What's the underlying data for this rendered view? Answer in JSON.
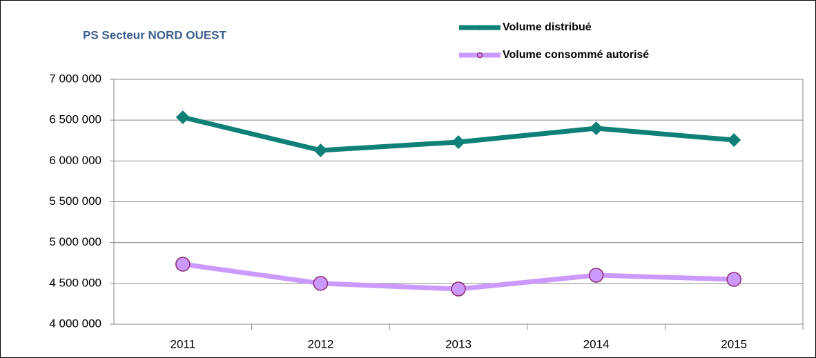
{
  "chart_data": {
    "type": "line",
    "title": "PS Secteur NORD OUEST",
    "categories": [
      "2011",
      "2012",
      "2013",
      "2014",
      "2015"
    ],
    "series": [
      {
        "name": "Volume distribué",
        "color": "#0e8078",
        "marker": "diamond",
        "values": [
          6535000,
          6130000,
          6231000,
          6400000,
          6256000
        ]
      },
      {
        "name": "Volume consommé autorisé",
        "color": "#cc99ff",
        "marker": "circle",
        "values": [
          4735000,
          4500000,
          4431000,
          4600000,
          4549000
        ]
      }
    ],
    "ylim": [
      4000000,
      7000000
    ],
    "yticks": [
      {
        "value": 4000000,
        "label": "4 000 000"
      },
      {
        "value": 4500000,
        "label": "4 500 000"
      },
      {
        "value": 5000000,
        "label": "5 000 000"
      },
      {
        "value": 5500000,
        "label": "5 500 000"
      },
      {
        "value": 6000000,
        "label": "6 000 000"
      },
      {
        "value": 6500000,
        "label": "6 500 000"
      },
      {
        "value": 7000000,
        "label": "7 000 000"
      }
    ],
    "grid": true
  }
}
